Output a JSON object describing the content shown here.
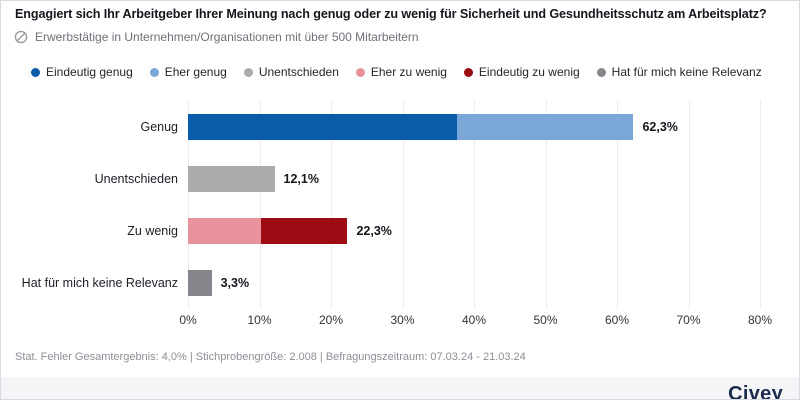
{
  "header": {
    "title": "Engagiert sich Ihr Arbeitgeber Ihrer Meinung nach genug oder zu wenig für Sicherheit und Gesundheitsschutz am Arbeitsplatz?",
    "subtitle": "Erwerbstätige in Unternehmen/Organisationen mit über 500 Mitarbeitern",
    "subtitle_icon": "filter-prohibition-icon"
  },
  "colors": {
    "eindeutig_genug": "#0a5ca8",
    "eher_genug": "#7aa6d8",
    "unentschieden": "#ababab",
    "eher_zu_wenig": "#e8929b",
    "eindeutig_zu_wenig": "#9c0d13",
    "keine_relevanz": "#85858b",
    "gridline": "#ececf0",
    "band_background": "#f5f5f7",
    "brand_navy": "#1c2b4e"
  },
  "chart_data": {
    "type": "bar",
    "orientation": "horizontal",
    "title": "",
    "xlabel": "",
    "ylabel": "",
    "xlim": [
      0,
      80
    ],
    "tick_step": 10,
    "x_tick_labels": [
      "0%",
      "10%",
      "20%",
      "30%",
      "40%",
      "50%",
      "60%",
      "70%",
      "80%"
    ],
    "grid": true,
    "legend_position": "top",
    "legend": [
      {
        "label": "Eindeutig genug",
        "color": "#0a5ca8"
      },
      {
        "label": "Eher genug",
        "color": "#7aa6d8"
      },
      {
        "label": "Unentschieden",
        "color": "#ababab"
      },
      {
        "label": "Eher zu wenig",
        "color": "#e8929b"
      },
      {
        "label": "Eindeutig zu wenig",
        "color": "#9c0d13"
      },
      {
        "label": "Hat für mich keine Relevanz",
        "color": "#85858b"
      }
    ],
    "bars": [
      {
        "category": "Genug",
        "total": 62.3,
        "total_label": "62,3%",
        "segments": [
          {
            "name": "Eindeutig genug",
            "value": 37.6,
            "color": "#0a5ca8"
          },
          {
            "name": "Eher genug",
            "value": 24.7,
            "color": "#7aa6d8"
          }
        ]
      },
      {
        "category": "Unentschieden",
        "total": 12.1,
        "total_label": "12,1%",
        "segments": [
          {
            "name": "Unentschieden",
            "value": 12.1,
            "color": "#ababab"
          }
        ]
      },
      {
        "category": "Zu wenig",
        "total": 22.3,
        "total_label": "22,3%",
        "segments": [
          {
            "name": "Eher zu wenig",
            "value": 10.2,
            "color": "#e8929b"
          },
          {
            "name": "Eindeutig zu wenig",
            "value": 12.1,
            "color": "#9c0d13"
          }
        ]
      },
      {
        "category": "Hat für mich keine Relevanz",
        "total": 3.3,
        "total_label": "3,3%",
        "segments": [
          {
            "name": "Hat für mich keine Relevanz",
            "value": 3.3,
            "color": "#85858b"
          }
        ]
      }
    ]
  },
  "footer": {
    "note": "Stat. Fehler Gesamtergebnis: 4,0% | Stichprobengröße: 2.008 | Befragungszeitraum: 07.03.24 - 21.03.24",
    "brand": "Civey"
  }
}
